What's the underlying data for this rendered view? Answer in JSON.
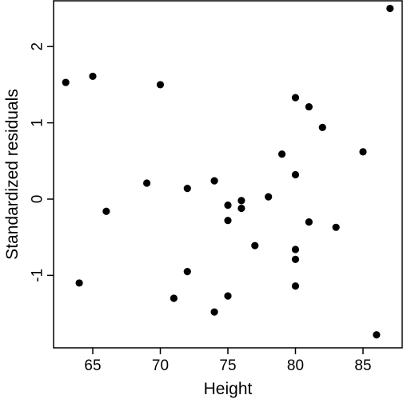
{
  "chart_data": {
    "type": "scatter",
    "title": "",
    "xlabel": "Height",
    "ylabel": "Standardized residuals",
    "xlim": [
      62.1,
      87.9
    ],
    "ylim": [
      -1.95,
      2.6
    ],
    "x_ticks": [
      65,
      70,
      75,
      80,
      85
    ],
    "x_tick_labels": [
      "65",
      "70",
      "75",
      "80",
      "85"
    ],
    "y_ticks": [
      -1,
      0,
      1,
      2
    ],
    "y_tick_labels": [
      "-1",
      "0",
      "1",
      "2"
    ],
    "grid": false,
    "legend": "none",
    "marker_color": "#000000",
    "points": [
      {
        "x": 63,
        "y": 1.53
      },
      {
        "x": 64,
        "y": -1.1
      },
      {
        "x": 65,
        "y": 1.61
      },
      {
        "x": 66,
        "y": -0.16
      },
      {
        "x": 69,
        "y": 0.21
      },
      {
        "x": 70,
        "y": 1.5
      },
      {
        "x": 71,
        "y": -1.3
      },
      {
        "x": 72,
        "y": 0.14
      },
      {
        "x": 72,
        "y": -0.95
      },
      {
        "x": 74,
        "y": 0.24
      },
      {
        "x": 74,
        "y": -1.48
      },
      {
        "x": 75,
        "y": -0.08
      },
      {
        "x": 75,
        "y": -0.28
      },
      {
        "x": 75,
        "y": -1.27
      },
      {
        "x": 76,
        "y": -0.02
      },
      {
        "x": 76,
        "y": -0.12
      },
      {
        "x": 77,
        "y": -0.61
      },
      {
        "x": 78,
        "y": 0.03
      },
      {
        "x": 79,
        "y": 0.59
      },
      {
        "x": 80,
        "y": 1.33
      },
      {
        "x": 80,
        "y": 0.32
      },
      {
        "x": 80,
        "y": -0.66
      },
      {
        "x": 80,
        "y": -0.79
      },
      {
        "x": 80,
        "y": -1.14
      },
      {
        "x": 81,
        "y": 1.21
      },
      {
        "x": 81,
        "y": -0.3
      },
      {
        "x": 82,
        "y": 0.94
      },
      {
        "x": 83,
        "y": -0.37
      },
      {
        "x": 85,
        "y": 0.62
      },
      {
        "x": 86,
        "y": -1.78
      },
      {
        "x": 87,
        "y": 2.5
      }
    ]
  }
}
